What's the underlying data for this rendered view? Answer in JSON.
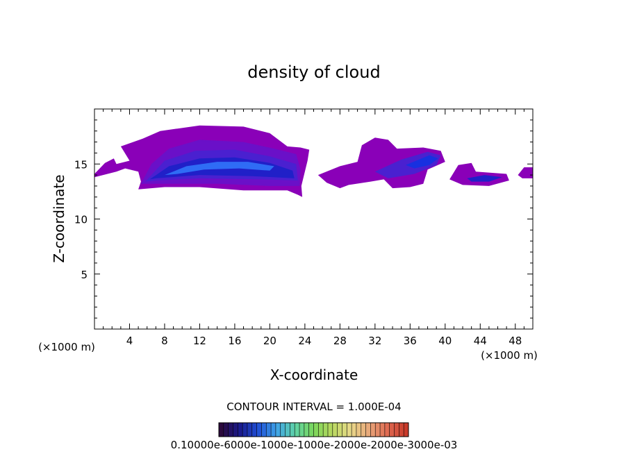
{
  "chart_data": {
    "type": "heatmap",
    "title": "density of cloud",
    "xlabel": "X-coordinate",
    "ylabel": "Z-coordinate",
    "x_unit_left": "(×1000 m)",
    "x_unit_right": "(×1000 m)",
    "xlim": [
      0,
      50
    ],
    "ylim": [
      0,
      20
    ],
    "x_ticks": [
      "4",
      "8",
      "12",
      "16",
      "20",
      "24",
      "28",
      "32",
      "36",
      "40",
      "44",
      "48"
    ],
    "x_tick_values": [
      4,
      8,
      12,
      16,
      20,
      24,
      28,
      32,
      36,
      40,
      44,
      48
    ],
    "y_ticks": [
      "5",
      "10",
      "15"
    ],
    "y_tick_values": [
      5,
      10,
      15
    ],
    "contour_interval_label": "CONTOUR INTERVAL = 1.000E-04",
    "colorbar_labels_text": "0.10000e-6000e-1000e-1000e-2000e-2000e-3000e-03",
    "colorbar_colors": [
      "#2b0a3d",
      "#1a1a8c",
      "#1f4fd6",
      "#3fa3e8",
      "#5fd4a6",
      "#7ad65a",
      "#b8d860",
      "#e8d98a",
      "#e8a77a",
      "#e06a52",
      "#c83a2a"
    ],
    "palette": {
      "outer": "#8a00b8",
      "level2": "#6a10c8",
      "level3": "#4a20d0",
      "level4": "#2020c8",
      "level5": "#1830e0",
      "core": "#2f6cf5"
    },
    "regions": [
      {
        "name": "main-cloud-mass",
        "outline": [
          [
            0,
            14.1
          ],
          [
            1.2,
            15.1
          ],
          [
            2.2,
            15.5
          ],
          [
            2.5,
            15.0
          ],
          [
            4.0,
            15.3
          ],
          [
            3.0,
            16.6
          ],
          [
            5.5,
            17.3
          ],
          [
            7.5,
            18.0
          ],
          [
            12.0,
            18.5
          ],
          [
            17.0,
            18.4
          ],
          [
            20.0,
            17.8
          ],
          [
            22.0,
            16.6
          ],
          [
            23.5,
            16.5
          ],
          [
            24.5,
            16.3
          ],
          [
            24.3,
            15.3
          ],
          [
            23.6,
            13.0
          ],
          [
            23.7,
            12.0
          ],
          [
            23.2,
            12.2
          ],
          [
            22.0,
            12.6
          ],
          [
            17.0,
            12.6
          ],
          [
            12.0,
            12.9
          ],
          [
            8.0,
            12.9
          ],
          [
            5.0,
            12.7
          ],
          [
            5.3,
            13.4
          ],
          [
            5.0,
            14.3
          ],
          [
            3.5,
            14.6
          ],
          [
            2.5,
            14.3
          ],
          [
            0,
            13.8
          ]
        ],
        "level": "outer"
      },
      {
        "name": "main-cloud-layer-2",
        "outline": [
          [
            5.3,
            13.2
          ],
          [
            6.5,
            15.0
          ],
          [
            8.5,
            16.4
          ],
          [
            12.0,
            17.2
          ],
          [
            17.0,
            17.0
          ],
          [
            20.5,
            16.4
          ],
          [
            23.0,
            15.9
          ],
          [
            23.5,
            14.5
          ],
          [
            23.4,
            13.0
          ],
          [
            20.0,
            13.0
          ],
          [
            14.0,
            13.2
          ],
          [
            8.0,
            13.2
          ]
        ],
        "level": "level2"
      },
      {
        "name": "main-cloud-layer-3",
        "outline": [
          [
            5.8,
            13.4
          ],
          [
            8.0,
            15.3
          ],
          [
            11.5,
            16.2
          ],
          [
            16.0,
            16.3
          ],
          [
            20.0,
            15.7
          ],
          [
            23.0,
            15.0
          ],
          [
            23.2,
            13.5
          ],
          [
            19.0,
            13.6
          ],
          [
            12.0,
            13.7
          ],
          [
            7.0,
            13.5
          ]
        ],
        "level": "level3"
      },
      {
        "name": "main-cloud-layer-4",
        "outline": [
          [
            6.3,
            13.6
          ],
          [
            8.5,
            14.8
          ],
          [
            12.0,
            15.5
          ],
          [
            16.0,
            15.6
          ],
          [
            20.0,
            15.1
          ],
          [
            22.6,
            14.4
          ],
          [
            22.8,
            13.7
          ],
          [
            18.0,
            13.9
          ],
          [
            12.0,
            14.0
          ],
          [
            7.0,
            13.7
          ]
        ],
        "level": "level4"
      },
      {
        "name": "main-cloud-core",
        "outline": [
          [
            8.0,
            14.0
          ],
          [
            10.5,
            14.8
          ],
          [
            14.0,
            15.2
          ],
          [
            17.5,
            15.2
          ],
          [
            20.5,
            14.8
          ],
          [
            20.0,
            14.4
          ],
          [
            16.5,
            14.6
          ],
          [
            12.5,
            14.5
          ],
          [
            9.5,
            14.1
          ]
        ],
        "level": "core"
      },
      {
        "name": "east-cloud",
        "outline": [
          [
            25.5,
            14.0
          ],
          [
            28.0,
            14.8
          ],
          [
            30.0,
            15.2
          ],
          [
            30.5,
            16.7
          ],
          [
            32.0,
            17.4
          ],
          [
            33.5,
            17.2
          ],
          [
            34.5,
            16.4
          ],
          [
            37.5,
            16.5
          ],
          [
            39.5,
            16.2
          ],
          [
            40.0,
            15.2
          ],
          [
            38.0,
            14.5
          ],
          [
            37.5,
            13.2
          ],
          [
            36.0,
            12.9
          ],
          [
            34.0,
            12.8
          ],
          [
            33.0,
            13.6
          ],
          [
            31.5,
            13.4
          ],
          [
            29.0,
            13.1
          ],
          [
            28.0,
            12.8
          ],
          [
            26.5,
            13.3
          ]
        ],
        "level": "outer"
      },
      {
        "name": "east-cloud-layer",
        "outline": [
          [
            32.0,
            14.3
          ],
          [
            35.0,
            15.4
          ],
          [
            38.0,
            16.1
          ],
          [
            39.5,
            15.8
          ],
          [
            39.0,
            14.9
          ],
          [
            36.5,
            14.1
          ],
          [
            33.5,
            13.7
          ]
        ],
        "level": "level3"
      },
      {
        "name": "east-cloud-core",
        "outline": [
          [
            35.5,
            14.9
          ],
          [
            38.2,
            15.8
          ],
          [
            39.2,
            15.5
          ],
          [
            38.2,
            14.9
          ],
          [
            36.5,
            14.6
          ]
        ],
        "level": "level5"
      },
      {
        "name": "far-east-cloud",
        "outline": [
          [
            40.5,
            13.6
          ],
          [
            41.5,
            14.9
          ],
          [
            43.0,
            15.1
          ],
          [
            43.5,
            14.3
          ],
          [
            47.0,
            14.1
          ],
          [
            47.3,
            13.5
          ],
          [
            45.0,
            13.0
          ],
          [
            42.0,
            13.1
          ]
        ],
        "level": "outer"
      },
      {
        "name": "far-east-cloud-core",
        "outline": [
          [
            42.5,
            13.7
          ],
          [
            44.5,
            14.0
          ],
          [
            46.5,
            13.8
          ],
          [
            45.0,
            13.4
          ],
          [
            43.0,
            13.4
          ]
        ],
        "level": "level4"
      },
      {
        "name": "right-edge-cloud",
        "outline": [
          [
            48.3,
            14.0
          ],
          [
            49.0,
            14.7
          ],
          [
            50.0,
            14.7
          ],
          [
            50.0,
            13.7
          ],
          [
            48.8,
            13.7
          ]
        ],
        "level": "outer"
      }
    ]
  }
}
